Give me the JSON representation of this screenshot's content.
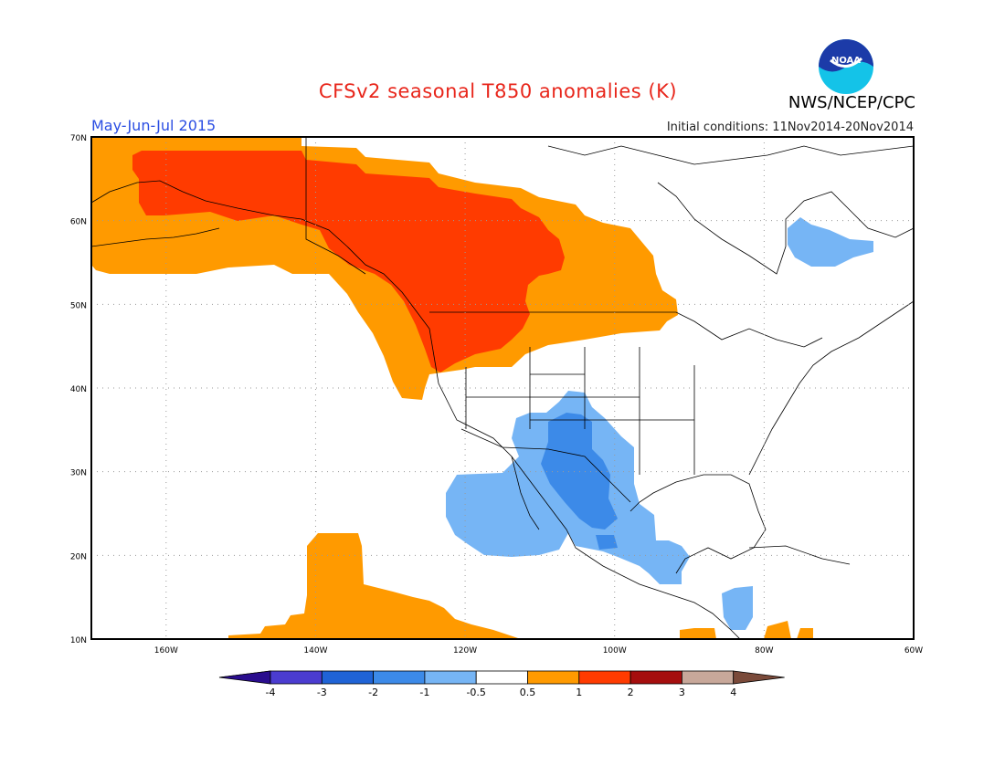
{
  "figure": {
    "title": "CFSv2 seasonal T850 anomalies (K)",
    "agency": "NWS/NCEP/CPC",
    "season": "May-Jun-Jul 2015",
    "initial_conditions": "Initial conditions: 11Nov2014-20Nov2014",
    "logo_text": "NOAA"
  },
  "map": {
    "lat_labels": [
      "70N",
      "60N",
      "50N",
      "40N",
      "30N",
      "20N",
      "10N"
    ],
    "lon_labels": [
      "160W",
      "140W",
      "120W",
      "100W",
      "80W",
      "60W"
    ],
    "lon_range": [
      -170,
      -60
    ],
    "lat_range": [
      10,
      70
    ],
    "grid": true
  },
  "legend": {
    "tick_labels": [
      "-4",
      "-3",
      "-2",
      "-1",
      "-0.5",
      "0.5",
      "1",
      "2",
      "3",
      "4"
    ],
    "colors": [
      "#2a0d8e",
      "#4b3cd0",
      "#1f63d6",
      "#3c8ae8",
      "#76b5f5",
      "#ffffff",
      "#ff9a00",
      "#ff3b00",
      "#a50e0e",
      "#c8a89a",
      "#7a4a3a"
    ]
  },
  "anomaly_regions": [
    {
      "category": "0.5 to 1",
      "color": "#ff9a00",
      "area": "Alaska, western Canada and US Pacific Northwest"
    },
    {
      "category": "1 to 2",
      "color": "#ff3b00",
      "area": "Alaska and western Canada"
    },
    {
      "category": "0.5 to 1",
      "color": "#ff9a00",
      "area": "Central Pacific near Hawaii"
    },
    {
      "category": "-1 to -0.5",
      "color": "#76b5f5",
      "area": "Mexico and US Southwest"
    },
    {
      "category": "-2 to -1",
      "color": "#3c8ae8",
      "area": "New Mexico and northern Mexico"
    },
    {
      "category": "-1 to -0.5",
      "color": "#76b5f5",
      "area": "Hudson Bay / northern Quebec"
    },
    {
      "category": "-1 to -0.5",
      "color": "#76b5f5",
      "area": "Central America"
    }
  ]
}
